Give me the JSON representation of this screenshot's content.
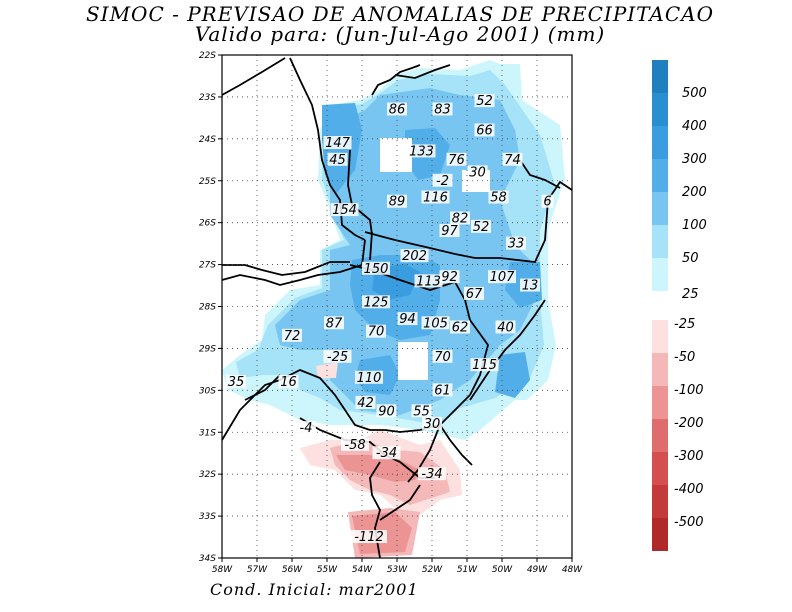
{
  "title_line1": "SIMOC - PREVISAO DE ANOMALIAS DE PRECIPITACAO",
  "title_line2": "Valido para: (Jun-Jul-Ago 2001) (mm)",
  "footer": "Cond. Inicial: mar2001",
  "axes": {
    "lon_ticks": [
      "58W",
      "57W",
      "56W",
      "55W",
      "54W",
      "53W",
      "52W",
      "51W",
      "50W",
      "49W",
      "48W"
    ],
    "lat_ticks": [
      "22S",
      "23S",
      "24S",
      "25S",
      "26S",
      "27S",
      "28S",
      "29S",
      "30S",
      "31S",
      "32S",
      "33S",
      "34S"
    ]
  },
  "colorbar": {
    "positive": [
      {
        "label": "500",
        "color": "#1f7fbf"
      },
      {
        "label": "400",
        "color": "#2a8fd0"
      },
      {
        "label": "300",
        "color": "#3a9de0"
      },
      {
        "label": "200",
        "color": "#52aee8"
      },
      {
        "label": "100",
        "color": "#78c5f2"
      },
      {
        "label": "50",
        "color": "#a6e2f8"
      },
      {
        "label": "25",
        "color": "#ccf6fc"
      }
    ],
    "negative": [
      {
        "label": "-25",
        "color": "#fde0e0"
      },
      {
        "label": "-50",
        "color": "#f4b8b8"
      },
      {
        "label": "-100",
        "color": "#ec9494"
      },
      {
        "label": "-200",
        "color": "#e06d6d"
      },
      {
        "label": "-300",
        "color": "#d45050"
      },
      {
        "label": "-400",
        "color": "#c43a3a"
      },
      {
        "label": "-500",
        "color": "#b02a2a"
      }
    ]
  },
  "values": [
    {
      "text": "86",
      "lon": -53.0,
      "lat": -23.3
    },
    {
      "text": "83",
      "lon": -51.7,
      "lat": -23.3
    },
    {
      "text": "52",
      "lon": -50.5,
      "lat": -23.1
    },
    {
      "text": "66",
      "lon": -50.5,
      "lat": -23.8
    },
    {
      "text": "147",
      "lon": -54.7,
      "lat": -24.1
    },
    {
      "text": "45",
      "lon": -54.7,
      "lat": -24.5
    },
    {
      "text": "133",
      "lon": -52.3,
      "lat": -24.3
    },
    {
      "text": "76",
      "lon": -51.3,
      "lat": -24.5
    },
    {
      "text": "30",
      "lon": -50.7,
      "lat": -24.8
    },
    {
      "text": "74",
      "lon": -49.7,
      "lat": -24.5
    },
    {
      "text": "-2",
      "lon": -51.7,
      "lat": -25.0
    },
    {
      "text": "154",
      "lon": -54.5,
      "lat": -25.7
    },
    {
      "text": "89",
      "lon": -53.0,
      "lat": -25.5
    },
    {
      "text": "116",
      "lon": -51.9,
      "lat": -25.4
    },
    {
      "text": "58",
      "lon": -50.1,
      "lat": -25.4
    },
    {
      "text": "6",
      "lon": -48.7,
      "lat": -25.5
    },
    {
      "text": "82",
      "lon": -51.2,
      "lat": -25.9
    },
    {
      "text": "97",
      "lon": -51.5,
      "lat": -26.2
    },
    {
      "text": "52",
      "lon": -50.6,
      "lat": -26.1
    },
    {
      "text": "33",
      "lon": -49.6,
      "lat": -26.5
    },
    {
      "text": "202",
      "lon": -52.5,
      "lat": -26.8
    },
    {
      "text": "150",
      "lon": -53.6,
      "lat": -27.1
    },
    {
      "text": "92",
      "lon": -51.5,
      "lat": -27.3
    },
    {
      "text": "113",
      "lon": -52.1,
      "lat": -27.4
    },
    {
      "text": "107",
      "lon": -50.0,
      "lat": -27.3
    },
    {
      "text": "13",
      "lon": -49.2,
      "lat": -27.5
    },
    {
      "text": "67",
      "lon": -50.8,
      "lat": -27.7
    },
    {
      "text": "125",
      "lon": -53.6,
      "lat": -27.9
    },
    {
      "text": "87",
      "lon": -54.8,
      "lat": -28.4
    },
    {
      "text": "94",
      "lon": -52.7,
      "lat": -28.3
    },
    {
      "text": "105",
      "lon": -51.9,
      "lat": -28.4
    },
    {
      "text": "62",
      "lon": -51.2,
      "lat": -28.5
    },
    {
      "text": "40",
      "lon": -49.9,
      "lat": -28.5
    },
    {
      "text": "72",
      "lon": -56.0,
      "lat": -28.7
    },
    {
      "text": "70",
      "lon": -53.6,
      "lat": -28.6
    },
    {
      "text": "-25",
      "lon": -54.7,
      "lat": -29.2
    },
    {
      "text": "70",
      "lon": -51.7,
      "lat": -29.2
    },
    {
      "text": "115",
      "lon": -50.5,
      "lat": -29.4
    },
    {
      "text": "35",
      "lon": -57.6,
      "lat": -29.8
    },
    {
      "text": "16",
      "lon": -56.1,
      "lat": -29.8
    },
    {
      "text": "110",
      "lon": -53.8,
      "lat": -29.7
    },
    {
      "text": "61",
      "lon": -51.7,
      "lat": -30.0
    },
    {
      "text": "42",
      "lon": -53.9,
      "lat": -30.3
    },
    {
      "text": "90",
      "lon": -53.3,
      "lat": -30.5
    },
    {
      "text": "55",
      "lon": -52.3,
      "lat": -30.5
    },
    {
      "text": "30",
      "lon": -52.0,
      "lat": -30.8
    },
    {
      "text": "-4",
      "lon": -55.6,
      "lat": -30.9
    },
    {
      "text": "-58",
      "lon": -54.2,
      "lat": -31.3
    },
    {
      "text": "-34",
      "lon": -53.3,
      "lat": -31.5
    },
    {
      "text": "-34",
      "lon": -52.0,
      "lat": -32.0
    },
    {
      "text": "-112",
      "lon": -53.8,
      "lat": -33.5
    }
  ]
}
